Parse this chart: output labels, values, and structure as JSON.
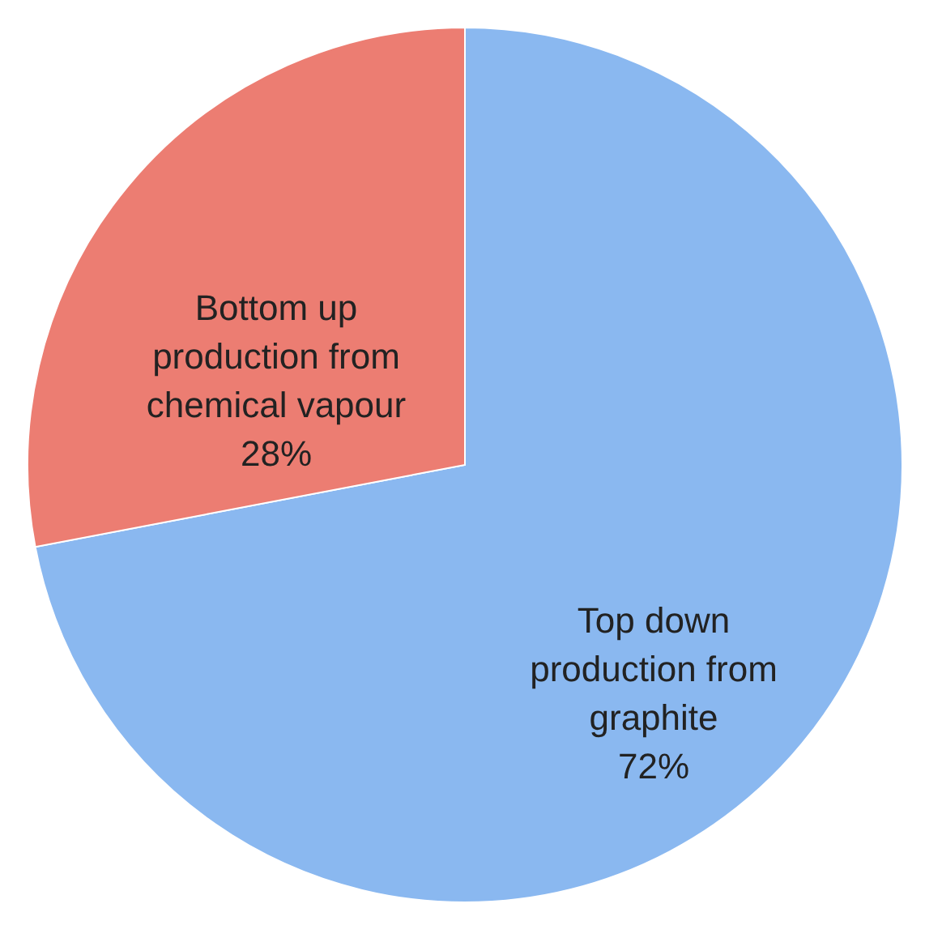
{
  "chart_data": {
    "type": "pie",
    "categories": [
      "Top down production from graphite",
      "Bottom up production from chemical vapour"
    ],
    "values": [
      72,
      28
    ],
    "colors": [
      "#8ab8f0",
      "#ec7d72"
    ],
    "value_labels": [
      "72%",
      "28%"
    ],
    "legend": false
  }
}
